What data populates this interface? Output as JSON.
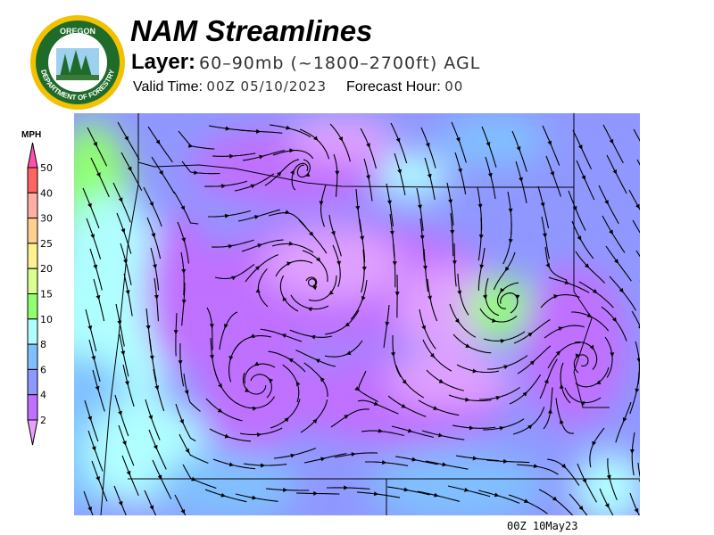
{
  "header": {
    "title": "NAM Streamlines",
    "layer_label": "Layer:",
    "layer_value": "60–90mb (~1800–2700ft) AGL",
    "valid_label": "Valid Time:",
    "valid_value": "00Z 05/10/2023",
    "forecast_hour_label": "Forecast Hour:",
    "forecast_hour_value": "00"
  },
  "logo": {
    "text_top": "OREGON",
    "text_ring": "DEPARTMENT OF FORESTRY"
  },
  "legend": {
    "unit": "MPH",
    "ticks": [
      "50",
      "40",
      "30",
      "25",
      "20",
      "15",
      "10",
      "8",
      "6",
      "4",
      "2"
    ],
    "colors": [
      "#ff6464",
      "#ffb0a0",
      "#ffd090",
      "#fff090",
      "#d8ff90",
      "#90ff70",
      "#b0ffff",
      "#80c0ff",
      "#9098ff",
      "#c070ff"
    ],
    "over_color": "#ff50b0",
    "under_color": "#e8a0ff"
  },
  "footer": {
    "timestamp": "00Z 10May23"
  }
}
